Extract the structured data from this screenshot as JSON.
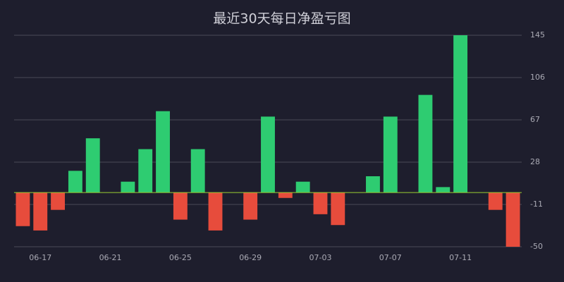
{
  "chart_data": {
    "type": "bar",
    "title": "最近30天每日净盈亏图",
    "categories": [
      null,
      "06-17",
      null,
      null,
      null,
      "06-21",
      null,
      null,
      null,
      "06-25",
      null,
      null,
      null,
      "06-29",
      null,
      null,
      null,
      "07-03",
      null,
      null,
      null,
      "07-07",
      null,
      null,
      null,
      "07-11",
      null,
      null,
      null
    ],
    "values": [
      -31,
      -35,
      -16,
      20,
      50,
      0,
      10,
      40,
      75,
      -25,
      40,
      -35,
      0,
      -25,
      70,
      -5,
      10,
      -20,
      -30,
      0,
      15,
      70,
      0,
      90,
      5,
      145,
      0,
      -16,
      -50
    ],
    "positive_color": "#2ecc71",
    "negative_color": "#e74c3c",
    "ylim": [
      -50,
      145
    ],
    "yticks": [
      -50,
      -11,
      28,
      67,
      106,
      145
    ],
    "grid": true
  }
}
